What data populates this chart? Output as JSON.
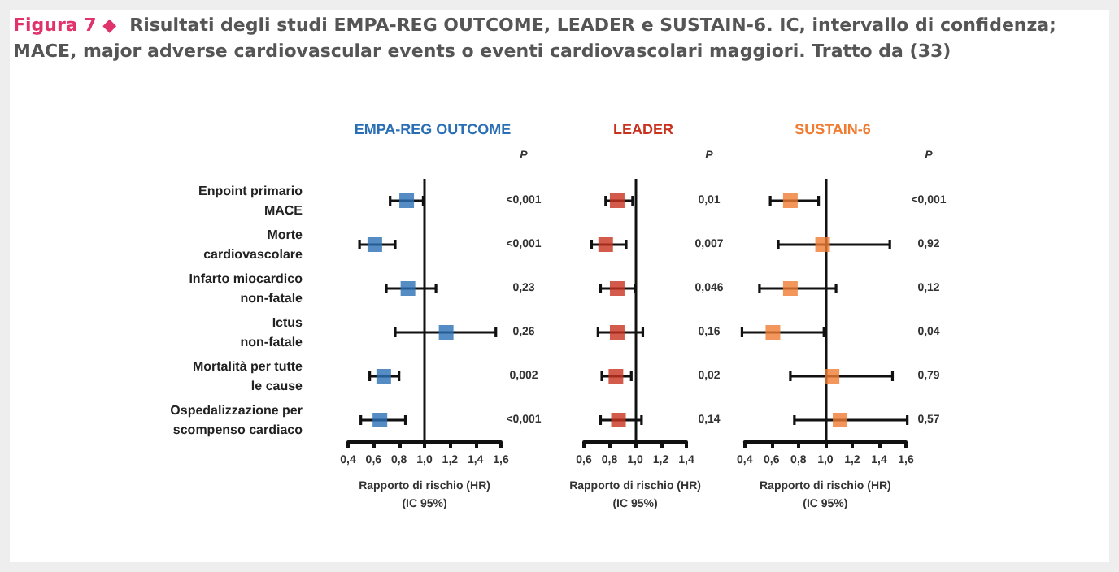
{
  "chart_data": [
    {
      "type": "other",
      "title": "Figura 7 ◆",
      "subtitle": "Risultati degli studi EMPA-REG OUTCOME, LEADER e SUSTAIN-6. IC, intervallo di confidenza; MACE, major adverse cardiovascular events o eventi cardiovascolari maggiori. Tratto da (33)"
    },
    {
      "type": "scatter",
      "title": "EMPA-REG OUTCOME",
      "orientation": "horizontal",
      "marker": "square",
      "categories": [
        "Enpoint primario\nMACE",
        "Morte\ncardiovascolare",
        "Infarto miocardico\nnon-fatale",
        "Ictus\nnon-fatale",
        "Mortalità per tutte\nle cause",
        "Ospedalizzazione per\nscompenso cardiaco"
      ],
      "series": [
        {
          "color": "#2a6fb5",
          "values": [
            0.86,
            0.61,
            0.87,
            1.17,
            0.68,
            0.65
          ],
          "errors": [
            [
              0.73,
              0.99
            ],
            [
              0.49,
              0.77
            ],
            [
              0.7,
              1.09
            ],
            [
              0.77,
              1.56
            ],
            [
              0.57,
              0.8
            ],
            [
              0.5,
              0.85
            ]
          ]
        }
      ],
      "xlim": [
        0.4,
        1.6
      ],
      "xticks": [
        {
          "value": 0.4,
          "label": "0,4"
        },
        {
          "value": 0.6,
          "label": "0,6"
        },
        {
          "value": 0.8,
          "label": "0,8"
        },
        {
          "value": 1.0,
          "label": "1,0"
        },
        {
          "value": 1.2,
          "label": "1,2"
        },
        {
          "value": 1.4,
          "label": "1,4"
        },
        {
          "value": 1.6,
          "label": "1,6"
        }
      ],
      "xlabel": "Rapporto di rischio (HR)\n(IC 95%)",
      "ref_lines": [
        {
          "axis": "x",
          "value": 1.0
        }
      ],
      "annotations": [
        "P",
        "<0,001",
        "<0,001",
        "0,23",
        "0,26",
        "0,002",
        "<0,001"
      ]
    },
    {
      "type": "scatter",
      "title": "LEADER",
      "orientation": "horizontal",
      "marker": "square",
      "tick_labels": "x",
      "categories": [
        null,
        null,
        null,
        null,
        null,
        null
      ],
      "series": [
        {
          "color": "#c8321e",
          "values": [
            0.86,
            0.77,
            0.86,
            0.86,
            0.85,
            0.87
          ],
          "errors": [
            [
              0.77,
              0.98
            ],
            [
              0.66,
              0.93
            ],
            [
              0.73,
              1.0
            ],
            [
              0.71,
              1.06
            ],
            [
              0.74,
              0.97
            ],
            [
              0.73,
              1.05
            ]
          ]
        }
      ],
      "xlim": [
        0.6,
        1.4
      ],
      "xticks": [
        {
          "value": 0.6,
          "label": "0,6"
        },
        {
          "value": 0.8,
          "label": "0,8"
        },
        {
          "value": 1.0,
          "label": "1,0"
        },
        {
          "value": 1.2,
          "label": "1,2"
        },
        {
          "value": 1.4,
          "label": "1,4"
        }
      ],
      "xlabel": "Rapporto di rischio (HR)\n(IC 95%)",
      "ref_lines": [
        {
          "axis": "x",
          "value": 1.0
        }
      ],
      "annotations": [
        "P",
        "0,01",
        "0,007",
        "0,046",
        "0,16",
        "0,02",
        "0,14"
      ]
    },
    {
      "type": "scatter",
      "title": "SUSTAIN-6",
      "orientation": "horizontal",
      "marker": "square",
      "tick_labels": "x",
      "categories": [
        null,
        null,
        null,
        null,
        null,
        null
      ],
      "series": [
        {
          "color": "#f07c32",
          "values": [
            0.74,
            0.98,
            0.74,
            0.61,
            1.05,
            1.11
          ],
          "errors": [
            [
              0.59,
              0.95
            ],
            [
              0.65,
              1.48
            ],
            [
              0.51,
              1.08
            ],
            [
              0.38,
              0.99
            ],
            [
              0.74,
              1.5
            ],
            [
              0.77,
              1.61
            ]
          ]
        }
      ],
      "xlim": [
        0.4,
        1.6
      ],
      "xticks": [
        {
          "value": 0.4,
          "label": "0,4"
        },
        {
          "value": 0.6,
          "label": "0,6"
        },
        {
          "value": 0.8,
          "label": "0,8"
        },
        {
          "value": 1.0,
          "label": "1,0"
        },
        {
          "value": 1.2,
          "label": "1,2"
        },
        {
          "value": 1.4,
          "label": "1,4"
        },
        {
          "value": 1.6,
          "label": "1,6"
        }
      ],
      "xlabel": "Rapporto di rischio (HR)\n(IC 95%)",
      "ref_lines": [
        {
          "axis": "x",
          "value": 1.0
        }
      ],
      "annotations": [
        "P",
        "<0,001",
        "0,92",
        "0,12",
        "0,04",
        "0,79",
        "0,57"
      ]
    }
  ]
}
